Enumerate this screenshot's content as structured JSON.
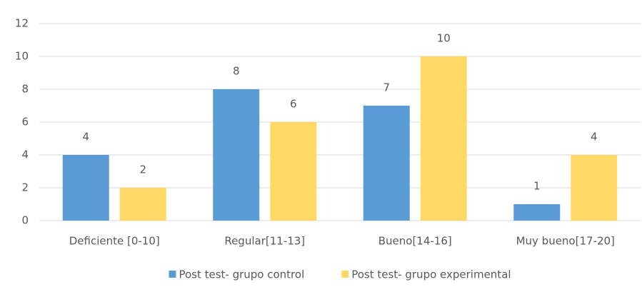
{
  "chart_data": {
    "type": "bar",
    "categories": [
      "Deficiente [0-10]",
      "Regular[11-13]",
      "Bueno[14-16]",
      "Muy bueno[17-20]"
    ],
    "series": [
      {
        "name": "Post test- grupo control",
        "color": "#5b9bd5",
        "values": [
          4,
          8,
          7,
          1
        ]
      },
      {
        "name": "Post test- grupo experimental",
        "color": "#ffd966",
        "values": [
          2,
          6,
          10,
          4
        ]
      }
    ],
    "ylim": [
      0,
      12
    ],
    "yticks": [
      0,
      2,
      4,
      6,
      8,
      10,
      12
    ],
    "grid": true,
    "legend": "bottom"
  }
}
